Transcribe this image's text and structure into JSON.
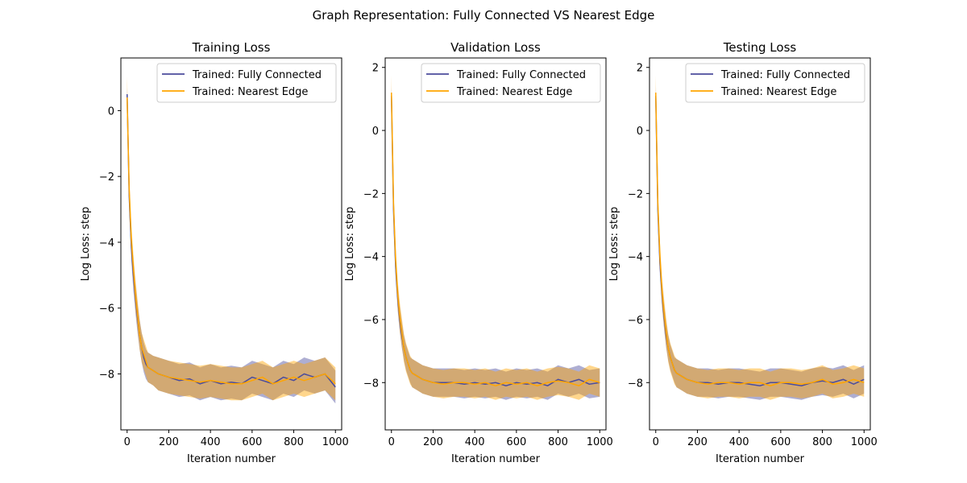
{
  "suptitle": "Graph Representation: Fully Connected VS Nearest Edge",
  "colors": {
    "fully_connected": "#4b4c9c",
    "nearest_edge": "#ffa500"
  },
  "chart_data": [
    {
      "type": "line",
      "title": "Training Loss",
      "xlabel": "Iteration number",
      "ylabel": "Log Loss: step",
      "xlim": [
        -30,
        1030
      ],
      "ylim": [
        -9.7,
        1.6
      ],
      "xticks": [
        0,
        200,
        400,
        600,
        800,
        1000
      ],
      "yticks": [
        0,
        -2,
        -4,
        -6,
        -8
      ],
      "legend": "top-right",
      "grid": false,
      "series": [
        {
          "name": "Trained: Fully Connected",
          "color": "#4b4c9c",
          "x": [
            0,
            10,
            20,
            30,
            40,
            50,
            60,
            70,
            80,
            90,
            100,
            125,
            150,
            200,
            250,
            300,
            350,
            400,
            450,
            500,
            550,
            600,
            650,
            700,
            750,
            800,
            850,
            900,
            950,
            1000
          ],
          "y": [
            0.5,
            -2.6,
            -4.1,
            -5.0,
            -5.7,
            -6.3,
            -6.8,
            -7.2,
            -7.5,
            -7.7,
            -7.8,
            -7.9,
            -8.0,
            -8.1,
            -8.2,
            -8.15,
            -8.3,
            -8.2,
            -8.3,
            -8.25,
            -8.3,
            -8.1,
            -8.2,
            -8.3,
            -8.1,
            -8.2,
            -8.0,
            -8.1,
            -8.0,
            -8.4
          ],
          "band": [
            0.2,
            0.4,
            0.45,
            0.45,
            0.45,
            0.45,
            0.45,
            0.45,
            0.45,
            0.45,
            0.45,
            0.45,
            0.5,
            0.5,
            0.5,
            0.5,
            0.5,
            0.5,
            0.5,
            0.5,
            0.5,
            0.5,
            0.5,
            0.5,
            0.5,
            0.5,
            0.5,
            0.5,
            0.5,
            0.5
          ]
        },
        {
          "name": "Trained: Nearest Edge",
          "color": "#ffa500",
          "x": [
            0,
            10,
            20,
            30,
            40,
            50,
            60,
            70,
            80,
            90,
            100,
            125,
            150,
            200,
            250,
            300,
            350,
            400,
            450,
            500,
            550,
            600,
            650,
            700,
            750,
            800,
            850,
            900,
            950,
            1000
          ],
          "y": [
            0.4,
            -2.4,
            -3.9,
            -4.8,
            -5.6,
            -6.2,
            -6.8,
            -7.2,
            -7.4,
            -7.6,
            -7.8,
            -7.9,
            -8.0,
            -8.1,
            -8.15,
            -8.2,
            -8.25,
            -8.2,
            -8.25,
            -8.3,
            -8.3,
            -8.2,
            -8.1,
            -8.3,
            -8.2,
            -8.1,
            -8.2,
            -8.1,
            -8.0,
            -8.3
          ],
          "band": [
            0.65,
            0.45,
            0.45,
            0.45,
            0.45,
            0.45,
            0.45,
            0.45,
            0.45,
            0.45,
            0.45,
            0.45,
            0.5,
            0.5,
            0.5,
            0.5,
            0.5,
            0.5,
            0.5,
            0.5,
            0.5,
            0.5,
            0.5,
            0.5,
            0.5,
            0.5,
            0.5,
            0.5,
            0.5,
            0.5
          ]
        }
      ]
    },
    {
      "type": "line",
      "title": "Validation Loss",
      "xlabel": "Iteration number",
      "ylabel": "Log Loss: step",
      "xlim": [
        -30,
        1030
      ],
      "ylim": [
        -9.5,
        2.3
      ],
      "xticks": [
        0,
        200,
        400,
        600,
        800,
        1000
      ],
      "yticks": [
        2,
        0,
        -2,
        -4,
        -6,
        -8
      ],
      "legend": "top-right",
      "grid": false,
      "series": [
        {
          "name": "Trained: Fully Connected",
          "color": "#4b4c9c",
          "x": [
            0,
            10,
            20,
            30,
            40,
            50,
            60,
            70,
            80,
            90,
            100,
            125,
            150,
            200,
            250,
            300,
            350,
            400,
            450,
            500,
            550,
            600,
            650,
            700,
            750,
            800,
            850,
            900,
            950,
            1000
          ],
          "y": [
            1.1,
            -2.5,
            -4.3,
            -5.3,
            -6.0,
            -6.5,
            -6.9,
            -7.2,
            -7.4,
            -7.6,
            -7.7,
            -7.8,
            -7.9,
            -8.0,
            -8.0,
            -8.0,
            -8.05,
            -8.0,
            -8.05,
            -8.0,
            -8.1,
            -8.0,
            -8.05,
            -8.0,
            -8.1,
            -7.9,
            -8.0,
            -7.9,
            -8.05,
            -8.0
          ],
          "band": [
            0.3,
            0.4,
            0.4,
            0.4,
            0.4,
            0.4,
            0.4,
            0.4,
            0.4,
            0.4,
            0.45,
            0.45,
            0.45,
            0.45,
            0.45,
            0.45,
            0.45,
            0.45,
            0.45,
            0.45,
            0.45,
            0.45,
            0.45,
            0.45,
            0.45,
            0.45,
            0.45,
            0.45,
            0.45,
            0.45
          ]
        },
        {
          "name": "Trained: Nearest Edge",
          "color": "#ffa500",
          "x": [
            0,
            10,
            20,
            30,
            40,
            50,
            60,
            70,
            80,
            90,
            100,
            125,
            150,
            200,
            250,
            300,
            350,
            400,
            450,
            500,
            550,
            600,
            650,
            700,
            750,
            800,
            850,
            900,
            950,
            1000
          ],
          "y": [
            1.2,
            -2.3,
            -4.1,
            -5.2,
            -5.9,
            -6.4,
            -6.9,
            -7.2,
            -7.4,
            -7.6,
            -7.7,
            -7.8,
            -7.9,
            -8.0,
            -8.05,
            -8.0,
            -8.0,
            -8.05,
            -8.0,
            -8.1,
            -8.0,
            -8.05,
            -8.0,
            -8.1,
            -8.0,
            -7.95,
            -8.0,
            -8.1,
            -7.9,
            -8.0
          ],
          "band": [
            0.55,
            0.45,
            0.45,
            0.45,
            0.45,
            0.45,
            0.45,
            0.45,
            0.45,
            0.45,
            0.45,
            0.45,
            0.45,
            0.45,
            0.45,
            0.45,
            0.45,
            0.45,
            0.45,
            0.45,
            0.45,
            0.45,
            0.45,
            0.45,
            0.45,
            0.45,
            0.45,
            0.45,
            0.45,
            0.45
          ]
        }
      ]
    },
    {
      "type": "line",
      "title": "Testing Loss",
      "xlabel": "Iteration number",
      "ylabel": "Log Loss: step",
      "xlim": [
        -30,
        1030
      ],
      "ylim": [
        -9.5,
        2.3
      ],
      "xticks": [
        0,
        200,
        400,
        600,
        800,
        1000
      ],
      "yticks": [
        2,
        0,
        -2,
        -4,
        -6,
        -8
      ],
      "legend": "top-right",
      "grid": false,
      "series": [
        {
          "name": "Trained: Fully Connected",
          "color": "#4b4c9c",
          "x": [
            0,
            10,
            20,
            30,
            40,
            50,
            60,
            70,
            80,
            90,
            100,
            125,
            150,
            200,
            250,
            300,
            350,
            400,
            450,
            500,
            550,
            600,
            650,
            700,
            750,
            800,
            850,
            900,
            950,
            1000
          ],
          "y": [
            1.1,
            -2.5,
            -4.2,
            -5.2,
            -5.9,
            -6.5,
            -6.9,
            -7.2,
            -7.4,
            -7.6,
            -7.7,
            -7.8,
            -7.9,
            -8.0,
            -8.0,
            -8.05,
            -8.0,
            -8.0,
            -8.05,
            -8.1,
            -8.0,
            -8.0,
            -8.05,
            -8.1,
            -8.0,
            -7.95,
            -8.0,
            -7.9,
            -8.05,
            -7.9
          ],
          "band": [
            0.3,
            0.4,
            0.4,
            0.4,
            0.4,
            0.4,
            0.4,
            0.4,
            0.4,
            0.4,
            0.45,
            0.45,
            0.45,
            0.45,
            0.45,
            0.45,
            0.45,
            0.45,
            0.45,
            0.45,
            0.45,
            0.45,
            0.45,
            0.45,
            0.45,
            0.45,
            0.45,
            0.45,
            0.45,
            0.45
          ]
        },
        {
          "name": "Trained: Nearest Edge",
          "color": "#ffa500",
          "x": [
            0,
            10,
            20,
            30,
            40,
            50,
            60,
            70,
            80,
            90,
            100,
            125,
            150,
            200,
            250,
            300,
            350,
            400,
            450,
            500,
            550,
            600,
            650,
            700,
            750,
            800,
            850,
            900,
            950,
            1000
          ],
          "y": [
            1.2,
            -2.3,
            -4.0,
            -5.1,
            -5.8,
            -6.4,
            -6.9,
            -7.2,
            -7.4,
            -7.6,
            -7.7,
            -7.8,
            -7.9,
            -8.0,
            -8.05,
            -8.0,
            -8.0,
            -8.05,
            -8.0,
            -8.0,
            -8.1,
            -8.0,
            -8.0,
            -8.05,
            -8.0,
            -7.9,
            -8.05,
            -8.0,
            -7.9,
            -8.0
          ],
          "band": [
            0.55,
            0.45,
            0.45,
            0.45,
            0.45,
            0.45,
            0.45,
            0.45,
            0.45,
            0.45,
            0.45,
            0.45,
            0.45,
            0.45,
            0.45,
            0.45,
            0.45,
            0.45,
            0.45,
            0.45,
            0.45,
            0.45,
            0.45,
            0.45,
            0.45,
            0.45,
            0.45,
            0.45,
            0.45,
            0.45
          ]
        }
      ]
    }
  ]
}
